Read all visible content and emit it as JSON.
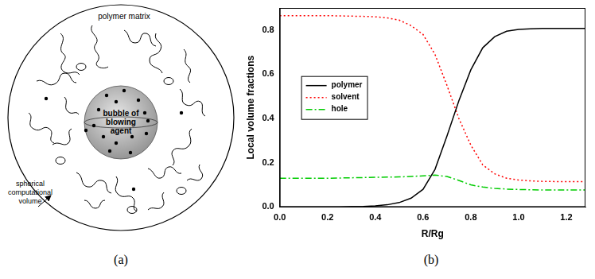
{
  "captions": [
    "(a)",
    "(b)"
  ],
  "diagram": {
    "matrix_label": "polymer matrix",
    "bubble_label": [
      "bubble of",
      "blowing",
      "agent"
    ],
    "volume_label": [
      "spherical",
      "computational",
      "volume"
    ]
  },
  "chart_data": {
    "type": "line",
    "x_label": "R/Rg",
    "y_label": "Local volume fractions",
    "x": [
      0,
      0.05,
      0.1,
      0.15,
      0.2,
      0.25,
      0.3,
      0.35,
      0.4,
      0.45,
      0.5,
      0.55,
      0.6,
      0.65,
      0.7,
      0.75,
      0.8,
      0.85,
      0.9,
      0.95,
      1.0,
      1.05,
      1.1,
      1.15,
      1.2,
      1.25,
      1.28
    ],
    "series": [
      {
        "name": "polymer",
        "color": "#000000",
        "line_style": "solid",
        "values": [
          0,
          0,
          0,
          0,
          0,
          0,
          0.001,
          0.002,
          0.005,
          0.01,
          0.02,
          0.04,
          0.08,
          0.17,
          0.32,
          0.48,
          0.62,
          0.72,
          0.77,
          0.795,
          0.803,
          0.806,
          0.807,
          0.807,
          0.807,
          0.807,
          0.807
        ]
      },
      {
        "name": "solvent",
        "color": "#ff0000",
        "line_style": "dotted",
        "values": [
          0.865,
          0.865,
          0.865,
          0.865,
          0.865,
          0.864,
          0.863,
          0.862,
          0.86,
          0.855,
          0.845,
          0.82,
          0.78,
          0.69,
          0.55,
          0.4,
          0.28,
          0.19,
          0.15,
          0.13,
          0.122,
          0.118,
          0.116,
          0.115,
          0.115,
          0.115,
          0.115
        ]
      },
      {
        "name": "hole",
        "color": "#00cc00",
        "line_style": "dashdot",
        "values": [
          0.13,
          0.13,
          0.13,
          0.13,
          0.13,
          0.131,
          0.132,
          0.133,
          0.134,
          0.135,
          0.136,
          0.138,
          0.141,
          0.144,
          0.138,
          0.12,
          0.1,
          0.09,
          0.084,
          0.081,
          0.079,
          0.078,
          0.077,
          0.077,
          0.077,
          0.077,
          0.077
        ]
      }
    ],
    "xlim": [
      0,
      1.28
    ],
    "ylim": [
      0,
      0.9
    ],
    "xticks": [
      {
        "value": 0,
        "label": "0.0"
      },
      {
        "value": 0.2,
        "label": "0.2"
      },
      {
        "value": 0.4,
        "label": "0.4"
      },
      {
        "value": 0.6,
        "label": "0.6"
      },
      {
        "value": 0.8,
        "label": "0.8"
      },
      {
        "value": 1.0,
        "label": "1.0"
      },
      {
        "value": 1.2,
        "label": "1.2"
      }
    ],
    "yticks": [
      {
        "value": 0,
        "label": "0.0"
      },
      {
        "value": 0.2,
        "label": "0.2"
      },
      {
        "value": 0.4,
        "label": "0.4"
      },
      {
        "value": 0.6,
        "label": "0.6"
      },
      {
        "value": 0.8,
        "label": "0.8"
      }
    ],
    "grid": false,
    "legend": "left"
  }
}
